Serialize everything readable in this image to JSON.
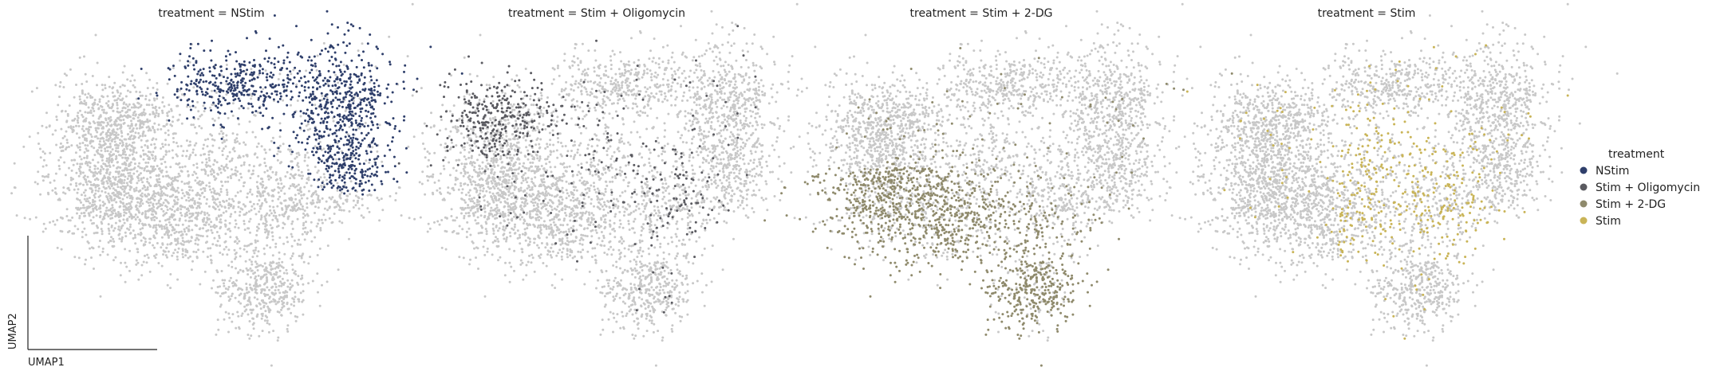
{
  "chart_data": {
    "type": "scatter",
    "facet_variable": "treatment",
    "panels": [
      {
        "title": "treatment = NStim",
        "group": "NStim"
      },
      {
        "title": "treatment = Stim + Oligomycin",
        "group": "Stim + Oligomycin"
      },
      {
        "title": "treatment = Stim + 2-DG",
        "group": "Stim + 2-DG"
      },
      {
        "title": "treatment = Stim",
        "group": "Stim"
      }
    ],
    "xlabel": "UMAP1",
    "ylabel": "UMAP2",
    "background_color": "#c8c8c8",
    "legend": {
      "title": "treatment",
      "placement": "right",
      "entries": [
        {
          "label": "NStim",
          "color": "#2f3f6b"
        },
        {
          "label": "Stim + Oligomycin",
          "color": "#5a5a60"
        },
        {
          "label": "Stim + 2-DG",
          "color": "#8f8a6c"
        },
        {
          "label": "Stim",
          "color": "#c9b457"
        }
      ]
    },
    "grid": false
  }
}
